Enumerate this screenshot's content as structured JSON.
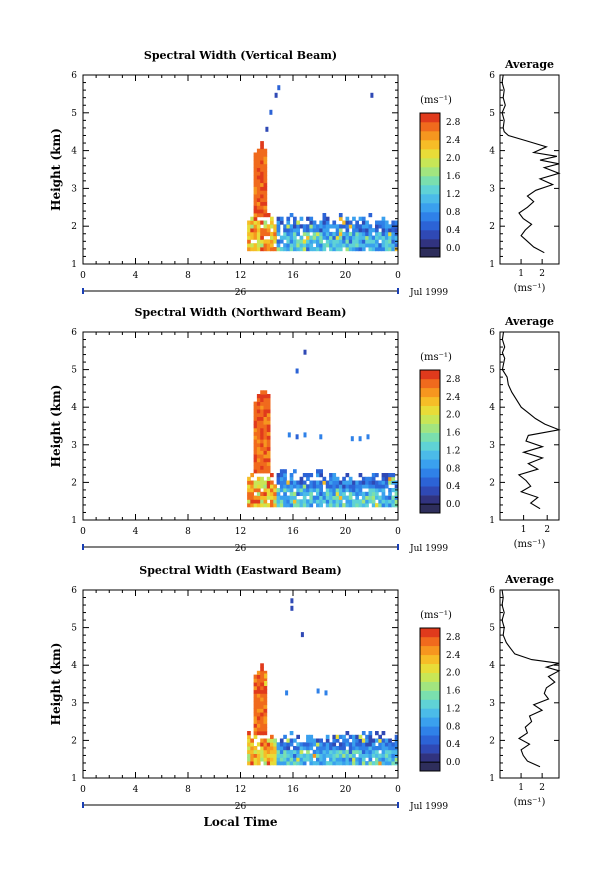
{
  "chart_data": [
    {
      "type": "heatmap",
      "title": "Spectral Width (Vertical Beam)",
      "ylabel": "Height (km)",
      "xlabel": "",
      "ylim": [
        1,
        6
      ],
      "xlim": [
        0,
        24
      ],
      "yticks": [
        "1",
        "2",
        "3",
        "4",
        "5",
        "6"
      ],
      "xticks": [
        "0",
        "4",
        "8",
        "12",
        "16",
        "20",
        "0"
      ],
      "date_day": "26",
      "date_month": "Jul 1999",
      "echo_region": {
        "start_hour": 12.5,
        "end_hour": 24,
        "min_km": 1.35,
        "max_km": 2.55
      },
      "spike": {
        "start_hour": 13.0,
        "end_hour": 14.0,
        "top_km": 4.2,
        "value": 2.7
      },
      "outliers": [
        [
          14.8,
          5.65,
          0.6
        ],
        [
          14.6,
          5.45,
          0.5
        ],
        [
          14.2,
          5.0,
          0.6
        ],
        [
          13.9,
          4.55,
          0.5
        ],
        [
          21.9,
          5.45,
          0.5
        ]
      ],
      "colorbar": {
        "unit": "(ms⁻¹)",
        "min": 0.0,
        "max": 2.8,
        "ticks": [
          "0.0",
          "0.4",
          "0.8",
          "1.2",
          "1.6",
          "2.0",
          "2.4",
          "2.8"
        ]
      },
      "average": {
        "title": "Average",
        "xlabel": "(ms⁻¹)",
        "xlim": [
          0,
          2.8
        ],
        "xticks": [
          "1",
          "2"
        ],
        "heights": [
          1.3,
          1.45,
          1.6,
          1.75,
          1.9,
          2.05,
          2.2,
          2.35,
          2.5,
          2.65,
          2.8,
          2.95,
          3.1,
          3.25,
          3.4,
          3.55,
          3.65,
          3.75,
          3.85,
          3.95,
          4.1,
          4.25,
          4.4,
          4.5,
          4.6,
          4.8,
          5.0,
          5.2,
          5.4,
          5.6,
          5.8,
          6.0
        ],
        "values": [
          2.1,
          1.6,
          1.3,
          1.0,
          1.2,
          1.5,
          1.1,
          0.9,
          1.3,
          1.6,
          1.3,
          1.7,
          2.5,
          1.9,
          2.8,
          2.1,
          2.8,
          1.9,
          2.7,
          1.6,
          2.2,
          1.3,
          0.4,
          0.2,
          0.15,
          0.2,
          0.1,
          0.25,
          0.15,
          0.2,
          0.1,
          0.15
        ]
      }
    },
    {
      "type": "heatmap",
      "title": "Spectral Width (Northward Beam)",
      "ylabel": "Height (km)",
      "xlabel": "",
      "ylim": [
        1,
        6
      ],
      "xlim": [
        0,
        24
      ],
      "yticks": [
        "1",
        "2",
        "3",
        "4",
        "5",
        "6"
      ],
      "xticks": [
        "0",
        "4",
        "8",
        "12",
        "16",
        "20",
        "0"
      ],
      "date_day": "26",
      "date_month": "Jul 1999",
      "echo_region": {
        "start_hour": 12.5,
        "end_hour": 24,
        "min_km": 1.35,
        "max_km": 2.55
      },
      "spike": {
        "start_hour": 13.0,
        "end_hour": 14.2,
        "top_km": 4.5,
        "value": 2.7
      },
      "outliers": [
        [
          16.8,
          5.45,
          0.5
        ],
        [
          16.2,
          4.95,
          0.6
        ],
        [
          15.6,
          3.25,
          0.8
        ],
        [
          16.2,
          3.2,
          0.6
        ],
        [
          16.8,
          3.25,
          0.8
        ],
        [
          18.0,
          3.2,
          0.8
        ],
        [
          20.4,
          3.15,
          0.8
        ],
        [
          21.0,
          3.15,
          0.8
        ],
        [
          21.6,
          3.2,
          0.8
        ]
      ],
      "colorbar": {
        "unit": "(ms⁻¹)",
        "min": 0.0,
        "max": 2.8,
        "ticks": [
          "0.0",
          "0.4",
          "0.8",
          "1.2",
          "1.6",
          "2.0",
          "2.4",
          "2.8"
        ]
      },
      "average": {
        "title": "Average",
        "xlabel": "(ms⁻¹)",
        "xlim": [
          0,
          2.5
        ],
        "xticks": [
          "1",
          "2"
        ],
        "heights": [
          1.3,
          1.45,
          1.6,
          1.75,
          1.9,
          2.05,
          2.2,
          2.35,
          2.5,
          2.65,
          2.8,
          2.95,
          3.1,
          3.25,
          3.4,
          3.55,
          3.7,
          3.85,
          4.0,
          4.2,
          4.4,
          4.6,
          4.8,
          5.0,
          5.15,
          5.3,
          5.45,
          5.6,
          5.8,
          6.0
        ],
        "values": [
          1.7,
          1.3,
          1.6,
          0.9,
          1.3,
          1.1,
          0.8,
          1.6,
          1.2,
          1.8,
          1.0,
          1.8,
          1.1,
          1.2,
          2.5,
          1.9,
          1.5,
          1.2,
          0.9,
          0.7,
          0.5,
          0.35,
          0.3,
          0.1,
          0.15,
          0.2,
          0.1,
          0.2,
          0.1,
          0.15
        ]
      }
    },
    {
      "type": "heatmap",
      "title": "Spectral Width (Eastward Beam)",
      "ylabel": "Height (km)",
      "xlabel": "Local Time",
      "ylim": [
        1,
        6
      ],
      "xlim": [
        0,
        24
      ],
      "yticks": [
        "1",
        "2",
        "3",
        "4",
        "5",
        "6"
      ],
      "xticks": [
        "0",
        "4",
        "8",
        "12",
        "16",
        "20",
        "0"
      ],
      "date_day": "26",
      "date_month": "Jul 1999",
      "echo_region": {
        "start_hour": 12.5,
        "end_hour": 24,
        "min_km": 1.35,
        "max_km": 2.45
      },
      "spike": {
        "start_hour": 13.0,
        "end_hour": 14.0,
        "top_km": 4.0,
        "value": 2.7
      },
      "outliers": [
        [
          15.8,
          5.7,
          0.5
        ],
        [
          15.8,
          5.5,
          0.5
        ],
        [
          16.6,
          4.8,
          0.5
        ],
        [
          15.4,
          3.25,
          0.8
        ],
        [
          17.8,
          3.3,
          0.8
        ],
        [
          18.4,
          3.25,
          0.8
        ],
        [
          13.8,
          3.5,
          2.0
        ],
        [
          13.8,
          3.7,
          2.2
        ]
      ],
      "colorbar": {
        "unit": "(ms⁻¹)",
        "min": 0.0,
        "max": 2.8,
        "ticks": [
          "0.0",
          "0.4",
          "0.8",
          "1.2",
          "1.6",
          "2.0",
          "2.4",
          "2.8"
        ]
      },
      "average": {
        "title": "Average",
        "xlabel": "(ms⁻¹)",
        "xlim": [
          0,
          2.8
        ],
        "xticks": [
          "1",
          "2"
        ],
        "heights": [
          1.3,
          1.45,
          1.6,
          1.75,
          1.9,
          2.05,
          2.2,
          2.35,
          2.5,
          2.65,
          2.8,
          2.95,
          3.1,
          3.25,
          3.4,
          3.55,
          3.7,
          3.85,
          3.95,
          4.05,
          4.15,
          4.3,
          4.45,
          4.6,
          4.8,
          5.0,
          5.2,
          5.4,
          5.6,
          5.8,
          6.0
        ],
        "values": [
          1.9,
          1.3,
          1.1,
          1.0,
          1.4,
          0.9,
          1.3,
          1.2,
          1.5,
          1.4,
          2.0,
          1.6,
          2.3,
          2.1,
          2.2,
          2.6,
          2.3,
          2.8,
          2.2,
          2.8,
          1.5,
          0.7,
          0.5,
          0.3,
          0.15,
          0.2,
          0.1,
          0.2,
          0.1,
          0.15,
          0.1
        ]
      }
    }
  ]
}
